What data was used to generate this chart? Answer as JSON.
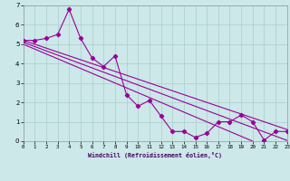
{
  "xlabel": "Windchill (Refroidissement éolien,°C)",
  "bg_color": "#cce8e8",
  "grid_color": "#aacece",
  "line_color": "#990099",
  "x_data": [
    0,
    1,
    2,
    3,
    4,
    5,
    6,
    7,
    8,
    9,
    10,
    11,
    12,
    13,
    14,
    15,
    16,
    17,
    18,
    19,
    20,
    21,
    22,
    23
  ],
  "y_series1": [
    5.2,
    5.2,
    5.3,
    5.5,
    6.8,
    5.3,
    4.3,
    3.85,
    4.4,
    2.4,
    1.8,
    2.1,
    1.3,
    0.5,
    0.5,
    0.2,
    0.4,
    1.0,
    1.0,
    1.35,
    1.0,
    0.05,
    0.5,
    0.5
  ],
  "y_linear1": [
    5.2,
    5.0,
    4.8,
    4.6,
    4.4,
    4.2,
    4.0,
    3.8,
    3.6,
    3.4,
    3.2,
    3.0,
    2.8,
    2.6,
    2.4,
    2.2,
    2.0,
    1.8,
    1.6,
    1.4,
    1.2,
    1.0,
    0.8,
    0.6
  ],
  "y_linear2": [
    5.1,
    4.88,
    4.66,
    4.44,
    4.22,
    4.0,
    3.78,
    3.56,
    3.34,
    3.12,
    2.9,
    2.68,
    2.46,
    2.24,
    2.02,
    1.8,
    1.58,
    1.36,
    1.14,
    0.92,
    0.7,
    0.48,
    0.26,
    0.04
  ],
  "y_linear3": [
    5.0,
    4.75,
    4.5,
    4.25,
    4.0,
    3.75,
    3.5,
    3.25,
    3.0,
    2.75,
    2.5,
    2.25,
    2.0,
    1.75,
    1.5,
    1.25,
    1.0,
    0.75,
    0.5,
    0.25,
    0.0,
    -0.25,
    -0.5,
    -0.75
  ],
  "ylim": [
    0,
    7
  ],
  "xlim": [
    0,
    23
  ],
  "yticks": [
    0,
    1,
    2,
    3,
    4,
    5,
    6,
    7
  ],
  "xticks": [
    0,
    1,
    2,
    3,
    4,
    5,
    6,
    7,
    8,
    9,
    10,
    11,
    12,
    13,
    14,
    15,
    16,
    17,
    18,
    19,
    20,
    21,
    22,
    23
  ]
}
